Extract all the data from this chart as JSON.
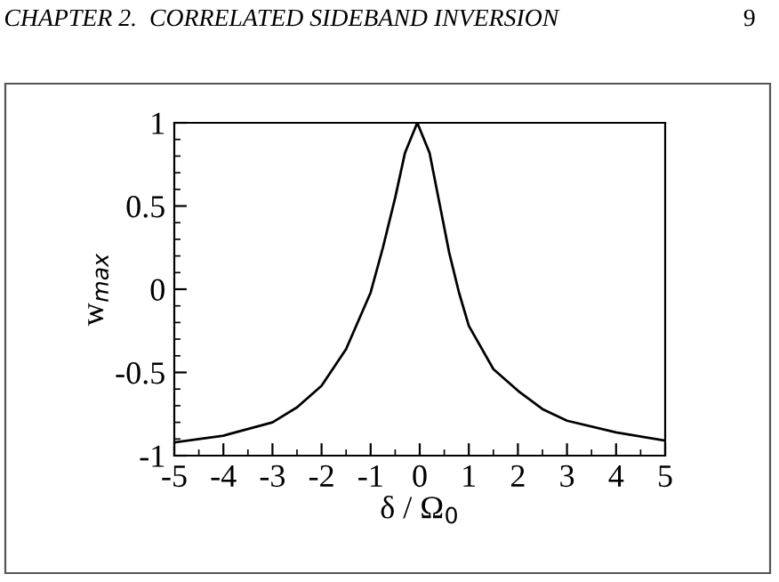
{
  "chart_data": {
    "type": "line",
    "annotations": [
      "CHAPTER 2.  CORRELATED SIDEBAND INVERSION",
      "9"
    ],
    "xlabel": "δ / Ω$_{0}$",
    "ylabel": "w$_{max}$",
    "x": [
      -5,
      -4,
      -3,
      -2.5,
      -2,
      -1.5,
      -1,
      -0.75,
      -0.5,
      -0.3,
      -0.05,
      0.2,
      0.4,
      0.6,
      0.8,
      1,
      1.5,
      2,
      2.5,
      3,
      4,
      5
    ],
    "series": [
      {
        "color": "#000000",
        "values": [
          -0.92,
          -0.88,
          -0.8,
          -0.71,
          -0.58,
          -0.36,
          -0.02,
          0.25,
          0.55,
          0.82,
          1,
          0.82,
          0.52,
          0.22,
          -0.02,
          -0.22,
          -0.48,
          -0.61,
          -0.72,
          -0.79,
          -0.86,
          -0.91
        ]
      }
    ],
    "xlim": [
      -5,
      5
    ],
    "xticks": [
      -5,
      -4,
      -3,
      -2,
      -1,
      0,
      1,
      2,
      3,
      4,
      5
    ],
    "ylim": [
      -1,
      1
    ],
    "yticks": [
      -1,
      -0.5,
      0,
      0.5,
      1
    ],
    "grid": false,
    "legend": false,
    "marker": "none",
    "line_style": "solid"
  }
}
